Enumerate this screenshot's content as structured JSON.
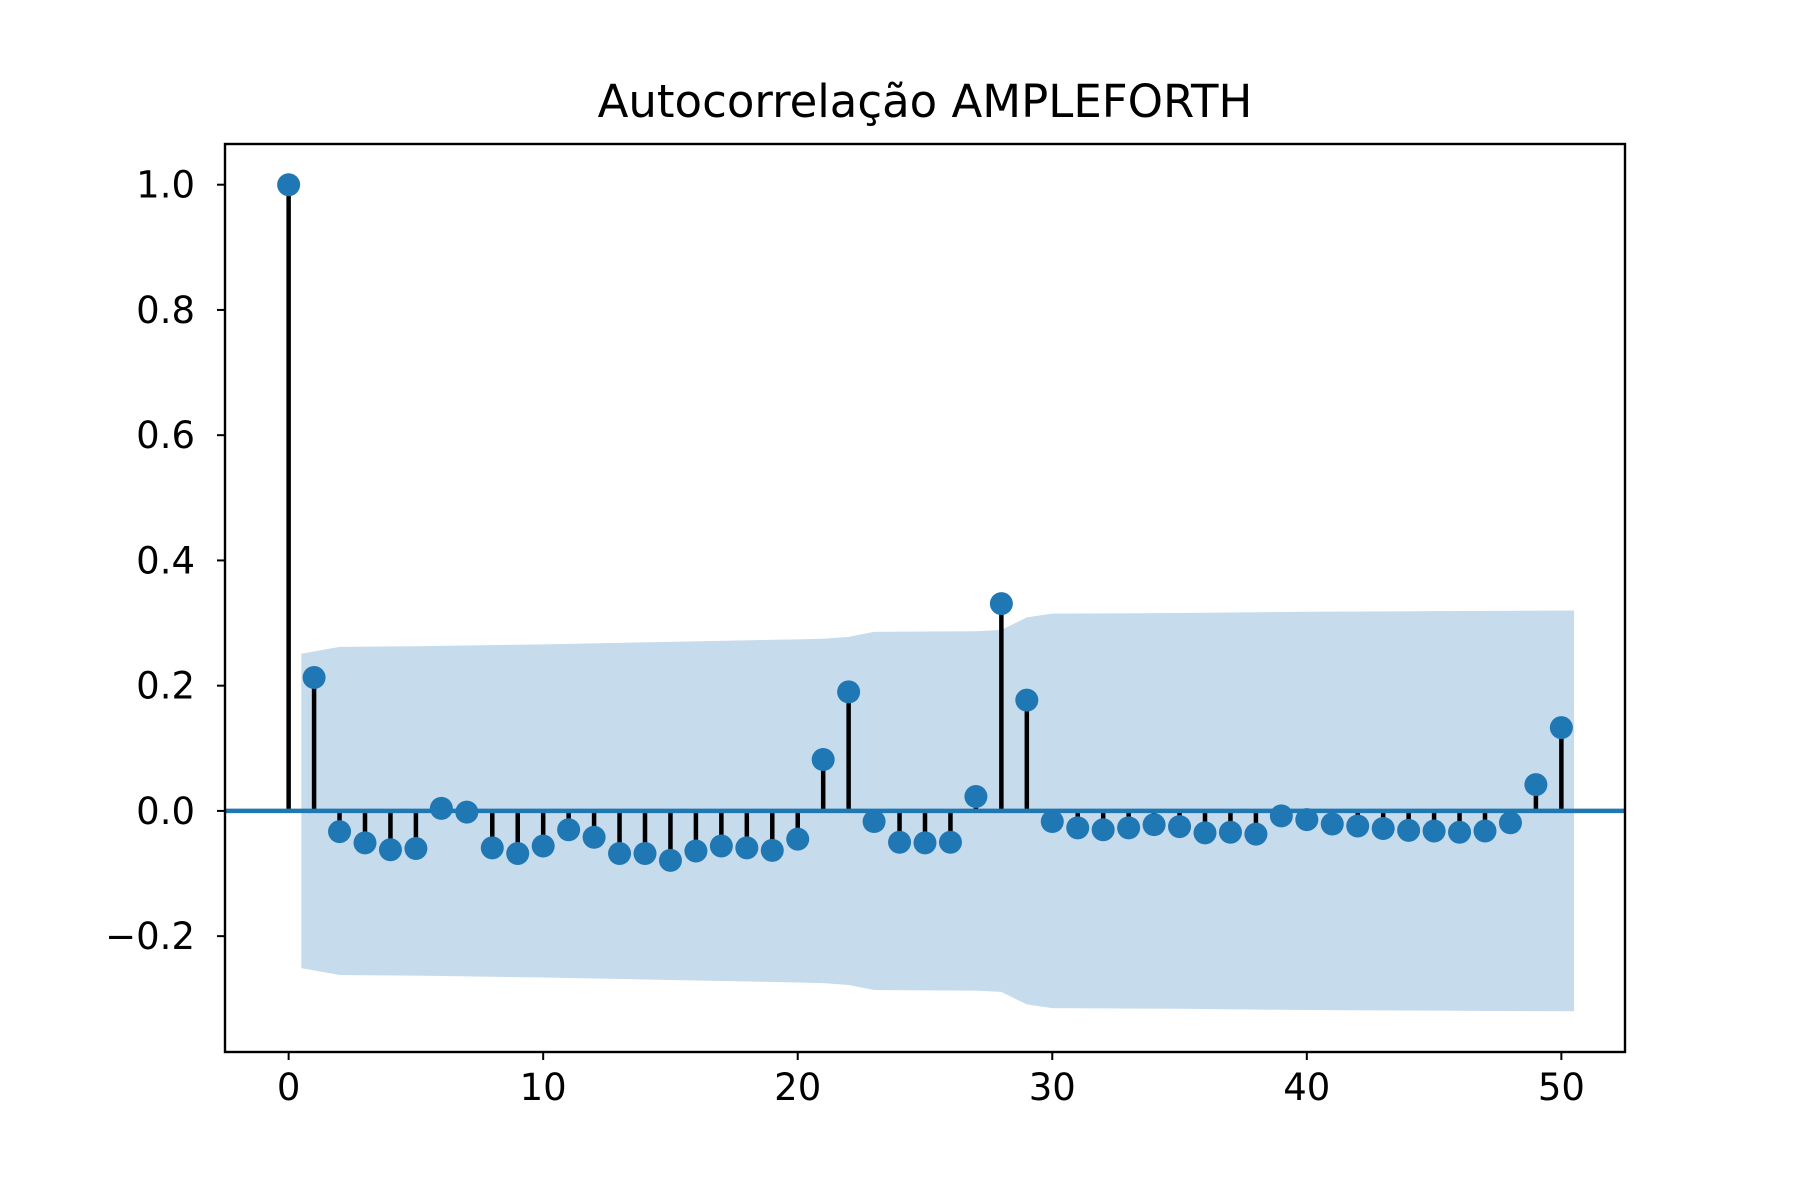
{
  "chart_data": {
    "type": "stem",
    "title": "Autocorrelação AMPLEFORTH",
    "xlabel": "",
    "ylabel": "",
    "xlim": [
      -2.5,
      52.5
    ],
    "ylim": [
      -0.385,
      1.065
    ],
    "x_ticks": [
      0,
      10,
      20,
      30,
      40,
      50
    ],
    "x_tick_labels": [
      "0",
      "10",
      "20",
      "30",
      "40",
      "50"
    ],
    "y_ticks": [
      -0.2,
      0.0,
      0.2,
      0.4,
      0.6,
      0.8,
      1.0
    ],
    "y_tick_labels": [
      "−0.2",
      "0.0",
      "0.2",
      "0.4",
      "0.6",
      "0.8",
      "1.0"
    ],
    "grid": false,
    "marker_color": "#1f77b4",
    "stem_color": "#000000",
    "baseline_color": "#1f77b4",
    "band_color": "#c6dbec",
    "lags": [
      0,
      1,
      2,
      3,
      4,
      5,
      6,
      7,
      8,
      9,
      10,
      11,
      12,
      13,
      14,
      15,
      16,
      17,
      18,
      19,
      20,
      21,
      22,
      23,
      24,
      25,
      26,
      27,
      28,
      29,
      30,
      31,
      32,
      33,
      34,
      35,
      36,
      37,
      38,
      39,
      40,
      41,
      42,
      43,
      44,
      45,
      46,
      47,
      48,
      49,
      50
    ],
    "values": [
      1.0,
      0.213,
      -0.033,
      -0.051,
      -0.062,
      -0.06,
      0.004,
      -0.002,
      -0.059,
      -0.068,
      -0.056,
      -0.03,
      -0.042,
      -0.068,
      -0.068,
      -0.079,
      -0.064,
      -0.056,
      -0.059,
      -0.063,
      -0.045,
      0.082,
      0.19,
      -0.017,
      -0.05,
      -0.051,
      -0.05,
      0.023,
      0.331,
      0.177,
      -0.017,
      -0.027,
      -0.03,
      -0.027,
      -0.022,
      -0.025,
      -0.035,
      -0.034,
      -0.037,
      -0.008,
      -0.014,
      -0.021,
      -0.024,
      -0.028,
      -0.031,
      -0.032,
      -0.034,
      -0.032,
      -0.019,
      0.042,
      0.133
    ],
    "confidence_band": {
      "x": [
        0.5,
        2,
        5,
        10,
        15,
        20,
        21,
        22,
        23,
        27,
        28,
        29,
        30,
        35,
        40,
        45,
        50.5
      ],
      "upper": [
        0.251,
        0.262,
        0.263,
        0.266,
        0.27,
        0.274,
        0.275,
        0.278,
        0.286,
        0.287,
        0.289,
        0.309,
        0.315,
        0.316,
        0.318,
        0.319,
        0.32
      ]
    }
  }
}
